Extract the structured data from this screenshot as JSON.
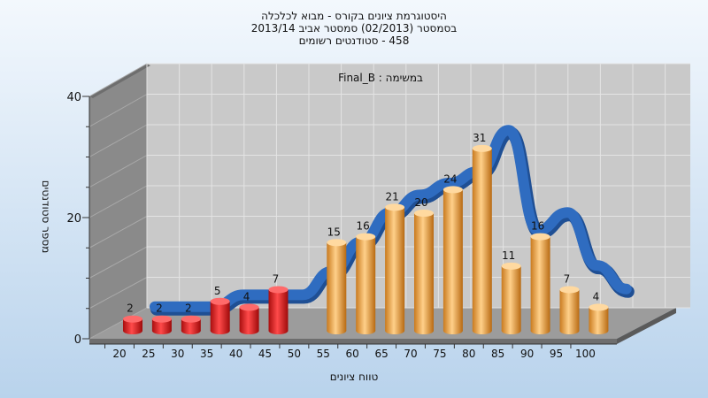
{
  "chart_data": {
    "type": "bar",
    "title_lines": [
      "היסטוגרמת ציונים בקורס - מבוא לכלכלה",
      "בסמסטר  (02/2013)  סמסטר אביב 2013/14",
      "458 - סטודנטים רשומים"
    ],
    "subtitle": "במשימה : Final_B",
    "xlabel": "טווח ציונים",
    "ylabel": "מספר סטודנטים",
    "categories": [
      "20",
      "25",
      "30",
      "35",
      "40",
      "45",
      "50",
      "55",
      "60",
      "65",
      "70",
      "75",
      "80",
      "85",
      "90",
      "95",
      "100"
    ],
    "values": [
      2,
      2,
      2,
      5,
      4,
      7,
      null,
      15,
      16,
      21,
      20,
      24,
      31,
      11,
      16,
      7,
      4
    ],
    "bar_colors": [
      "red",
      "red",
      "red",
      "red",
      "red",
      "red",
      null,
      "orange",
      "orange",
      "orange",
      "orange",
      "orange",
      "orange",
      "orange",
      "orange",
      "orange",
      "orange"
    ],
    "trend_line": [
      null,
      2,
      2,
      2,
      4,
      4,
      4,
      8,
      13,
      18,
      21,
      23,
      25,
      32,
      15,
      18,
      9,
      5
    ],
    "y_ticks": [
      "0",
      "20",
      "40"
    ],
    "ylim": [
      0,
      40
    ],
    "grid": true,
    "colors": {
      "red": "#e52020",
      "orange": "#f0a848",
      "trend": "#2f6cc0",
      "wall": "#c9c9c9",
      "side_wall": "#8a8a8a",
      "floor": "#9c9c9c"
    }
  }
}
